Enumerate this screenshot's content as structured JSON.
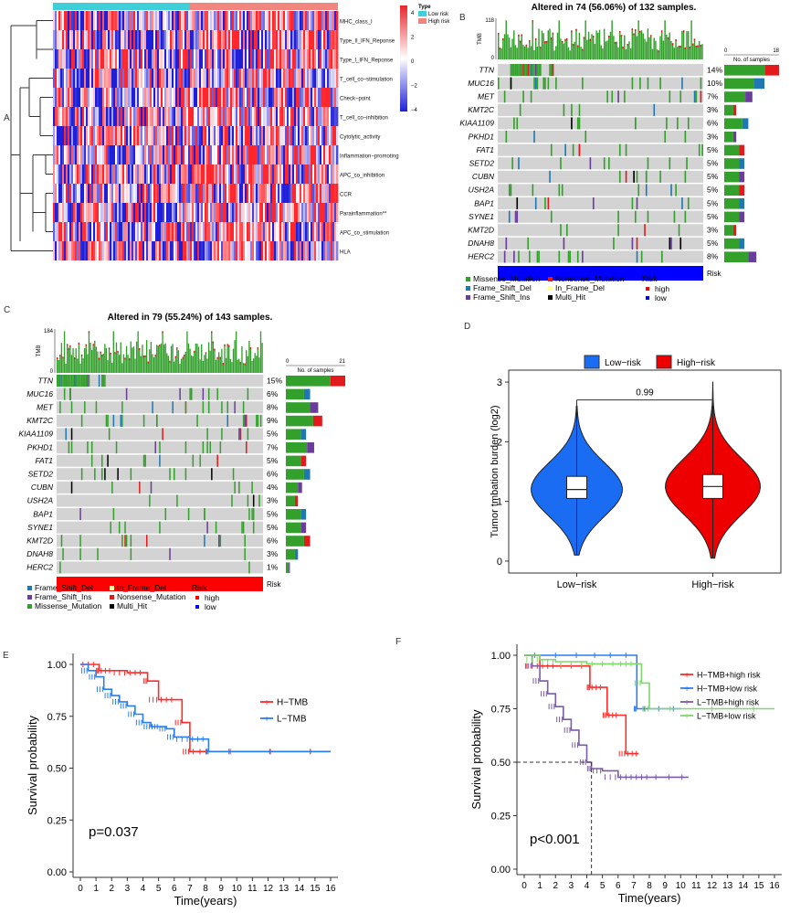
{
  "colors": {
    "low_risk": "#3fcfd9",
    "high_risk": "#f0867e",
    "heat_pos": "#e8262c",
    "heat_mid": "#ffffff",
    "heat_neg": "#1f1fd9",
    "missense": "#33a02c",
    "frame_shift_del": "#1f78b4",
    "frame_shift_ins": "#6a3d9a",
    "nonsense": "#e31a1c",
    "in_frame_del": "#ffff99",
    "multi_hit": "#000000",
    "risk_high": "#ff0000",
    "risk_low": "#0000ff",
    "violin_low": "#1a6cf2",
    "violin_high": "#ee0000",
    "km_htmb": "#ff2a2a",
    "km_ltmb": "#2a7df2",
    "km_f_h_high": "#ff2a2a",
    "km_f_h_low": "#2a7df2",
    "km_f_l_high": "#7a5ba8",
    "km_f_l_low": "#7ed96a",
    "grid_grey": "#cccccc"
  },
  "panelA": {
    "label": "A",
    "legend_title": "Type",
    "legend_items": [
      "Low risk",
      "High risk"
    ],
    "scale_ticks": [
      "4",
      "2",
      "0",
      "−2",
      "−4"
    ],
    "rows": [
      "MHC_class_I",
      "Type_II_IFN_Reponse",
      "Type_I_IFN_Reponse",
      "T_cell_co−stimulation",
      "Check−point",
      "T_cell_co−inhibition",
      "Cytolytic_activity",
      "Inflammation−promoting",
      "APC_co_inhibition",
      "CCR",
      "Parainflammation**",
      "APC_co_stimulation",
      "HLA"
    ]
  },
  "panelB": {
    "label": "B",
    "title": "Altered in 74 (56.06%) of 132 samples.",
    "tmb_label": "TMB",
    "tmb_max": "118",
    "tmb_zero": "0",
    "side_label": "No. of samples",
    "side_min": "0",
    "side_max": "18",
    "risk_label": "Risk",
    "genes": [
      "TTN",
      "MUC16",
      "MET",
      "KMT2C",
      "KIAA1109",
      "PKHD1",
      "FAT1",
      "SETD2",
      "CUBN",
      "USH2A",
      "BAP1",
      "SYNE1",
      "KMT2D",
      "DNAH8",
      "HERC2"
    ],
    "pcts": [
      "14%",
      "10%",
      "7%",
      "3%",
      "6%",
      "3%",
      "5%",
      "5%",
      "5%",
      "5%",
      "5%",
      "5%",
      "3%",
      "5%",
      "8%"
    ],
    "legend": [
      "Missense_Mutation",
      "Frame_Shift_Del",
      "Frame_Shift_Ins",
      "Nonsense_Mutation",
      "In_Frame_Del",
      "Multi_Hit"
    ],
    "risk_legend_title": "Risk",
    "risk_legend": [
      "high",
      "low"
    ]
  },
  "panelC": {
    "label": "C",
    "title": "Altered in 79 (55.24%) of 143 samples.",
    "tmb_label": "TMB",
    "tmb_max": "184",
    "tmb_zero": "0",
    "side_label": "No. of samples",
    "side_min": "0",
    "side_max": "21",
    "risk_label": "Risk",
    "genes": [
      "TTN",
      "MUC16",
      "MET",
      "KMT2C",
      "KIAA1109",
      "PKHD1",
      "FAT1",
      "SETD2",
      "CUBN",
      "USH2A",
      "BAP1",
      "SYNE1",
      "KMT2D",
      "DNAH8",
      "HERC2"
    ],
    "pcts": [
      "15%",
      "6%",
      "8%",
      "9%",
      "5%",
      "7%",
      "5%",
      "6%",
      "4%",
      "3%",
      "5%",
      "5%",
      "6%",
      "3%",
      "1%"
    ],
    "legend": [
      "Frame_Shift_Del",
      "Frame_Shift_Ins",
      "Missense_Mutation",
      "In_Frame_Del",
      "Nonsense_Mutation",
      "Multi_Hit"
    ],
    "risk_legend_title": "Risk",
    "risk_legend": [
      "high",
      "low"
    ]
  },
  "chart_data": [
    {
      "type": "violin",
      "panel": "D",
      "legend": [
        "Low−risk",
        "High−risk"
      ],
      "categories": [
        "Low−risk",
        "High−risk"
      ],
      "ylabel": "Tumor tmbation burden (log2)",
      "ylim": [
        -0.2,
        3.2
      ],
      "yticks": [
        "0",
        "1",
        "2",
        "3"
      ],
      "p_value": "0.99",
      "medians": [
        1.2,
        1.25
      ],
      "q1": [
        1.05,
        1.05
      ],
      "q3": [
        1.42,
        1.45
      ],
      "min": [
        0.1,
        0.05
      ],
      "max": [
        2.6,
        3.0
      ]
    },
    {
      "type": "line",
      "panel": "E",
      "ylabel": "Survival probability",
      "xlabel": "Time(years)",
      "xticks": [
        "0",
        "1",
        "2",
        "3",
        "4",
        "5",
        "6",
        "7",
        "8",
        "9",
        "10",
        "11",
        "12",
        "13",
        "14",
        "15",
        "16"
      ],
      "yticks": [
        "0.00",
        "0.25",
        "0.50",
        "0.75",
        "1.00"
      ],
      "pvalue": "p=0.037",
      "series": [
        {
          "name": "H−TMB",
          "x": [
            0,
            1,
            1.2,
            2,
            3,
            4,
            4.3,
            5,
            6,
            6.5,
            7,
            8.3,
            16
          ],
          "y": [
            1,
            1,
            0.97,
            0.97,
            0.96,
            0.96,
            0.92,
            0.83,
            0.83,
            0.72,
            0.58,
            0.58,
            0.58
          ]
        },
        {
          "name": "L−TMB",
          "x": [
            0,
            0.5,
            1,
            1.5,
            2,
            2.5,
            3,
            3.5,
            4,
            4.5,
            5,
            5.5,
            6,
            7,
            8,
            8.2,
            16
          ],
          "y": [
            1,
            0.97,
            0.94,
            0.88,
            0.85,
            0.82,
            0.8,
            0.76,
            0.72,
            0.7,
            0.7,
            0.69,
            0.65,
            0.64,
            0.64,
            0.58,
            0.58
          ]
        }
      ]
    },
    {
      "type": "line",
      "panel": "F",
      "ylabel": "Survival probability",
      "xlabel": "Time(years)",
      "xticks": [
        "0",
        "1",
        "2",
        "3",
        "4",
        "5",
        "6",
        "7",
        "8",
        "9",
        "10",
        "11",
        "12",
        "13",
        "14",
        "15",
        "16"
      ],
      "yticks": [
        "0.00",
        "0.25",
        "0.50",
        "0.75",
        "1.00"
      ],
      "pvalue": "p<0.001",
      "series": [
        {
          "name": "H−TMB+high risk",
          "x": [
            0,
            1,
            2,
            4,
            4.2,
            5,
            5.3,
            6,
            6.5,
            7.3
          ],
          "y": [
            1,
            0.95,
            0.95,
            0.95,
            0.85,
            0.85,
            0.72,
            0.72,
            0.54,
            0.54
          ]
        },
        {
          "name": "H−TMB+low risk",
          "x": [
            0,
            4,
            7,
            7.2,
            10
          ],
          "y": [
            1,
            1,
            1,
            0.75,
            0.75
          ]
        },
        {
          "name": "L−TMB+high risk",
          "x": [
            0,
            0.5,
            1,
            1.5,
            2,
            2.5,
            3,
            3.5,
            4,
            4.3,
            5,
            6,
            7,
            8,
            10.5
          ],
          "y": [
            1,
            0.95,
            0.88,
            0.82,
            0.76,
            0.7,
            0.65,
            0.58,
            0.5,
            0.47,
            0.46,
            0.43,
            0.43,
            0.43,
            0.43
          ]
        },
        {
          "name": "L−TMB+low risk",
          "x": [
            0,
            1,
            2,
            4,
            6,
            7,
            7.5,
            8,
            16
          ],
          "y": [
            1,
            0.98,
            0.97,
            0.96,
            0.96,
            0.96,
            0.87,
            0.75,
            0.75
          ]
        }
      ]
    }
  ]
}
